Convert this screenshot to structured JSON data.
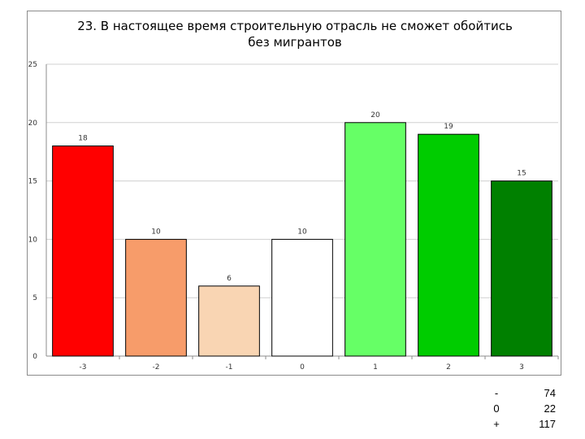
{
  "chart_data": {
    "type": "bar",
    "title_lines": [
      "23. В настоящее время строительную отрасль не сможет обойтись",
      "без мигрантов"
    ],
    "categories": [
      "-3",
      "-2",
      "-1",
      "0",
      "1",
      "2",
      "3"
    ],
    "values": [
      18,
      10,
      6,
      10,
      20,
      19,
      15
    ],
    "colors": [
      "#ff0000",
      "#f79c6a",
      "#f9d5b3",
      "#ffffff",
      "#66ff66",
      "#00cc00",
      "#008000"
    ],
    "ylim": [
      0,
      25
    ],
    "yticks": [
      0,
      5,
      10,
      15,
      20,
      25
    ],
    "grid": true,
    "xlabel": "",
    "ylabel": ""
  },
  "summary": {
    "rows": [
      {
        "label": "-",
        "value": "74"
      },
      {
        "label": "0",
        "value": "22"
      },
      {
        "label": "+",
        "value": "117"
      }
    ]
  }
}
